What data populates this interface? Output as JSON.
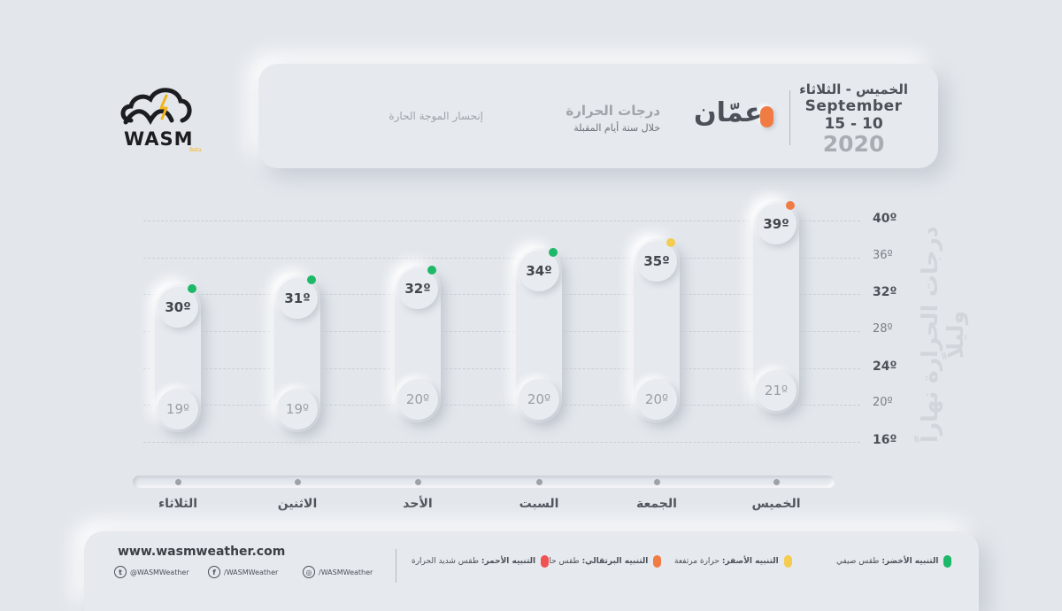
{
  "header": {
    "date_line1": "الخميس - الثلاثاء",
    "date_line2": "September",
    "date_line3": "15 - 10",
    "date_line4": "2020",
    "city": "عمّان",
    "title": "درجات الحرارة",
    "subtitle": "خلال ستة أيام المقبلة",
    "note": "إنحسار الموجة الحارة"
  },
  "logo": {
    "name": "WASM",
    "tag": "Beta"
  },
  "colors": {
    "green": "#1db868",
    "yellow": "#f5cc52",
    "orange": "#f07c44",
    "red": "#ef5354"
  },
  "chart_data": {
    "type": "bar",
    "ylabel": "درجات الحرارة نهاراً وليلاً",
    "ylim": [
      16,
      40
    ],
    "yticks": [
      "40º",
      "36º",
      "32º",
      "28º",
      "24º",
      "20º",
      "16º"
    ],
    "major_ticks": [
      "40º",
      "32º",
      "24º",
      "16º"
    ],
    "categories": [
      "الخميس",
      "الجمعة",
      "السبت",
      "الأحد",
      "الاثنين",
      "الثلاثاء"
    ],
    "highs": [
      39,
      35,
      34,
      32,
      31,
      30
    ],
    "lows": [
      21,
      20,
      20,
      20,
      19,
      19
    ],
    "high_labels": [
      "39º",
      "35º",
      "34º",
      "32º",
      "31º",
      "30º"
    ],
    "low_labels": [
      "21º",
      "20º",
      "20º",
      "20º",
      "19º",
      "19º"
    ],
    "alerts": [
      "orange",
      "yellow",
      "green",
      "green",
      "green",
      "green"
    ]
  },
  "footer": {
    "url": "www.wasmweather.com",
    "twitter": "@WASMWeather",
    "facebook": "/WASMWeather",
    "instagram": "/WASMWeather",
    "legend": [
      {
        "color": "green",
        "title": "التنبيه الأخضر:",
        "desc": "طقس صيفي"
      },
      {
        "color": "yellow",
        "title": "التنبيه الأصفر:",
        "desc": "حرارة مرتفعة"
      },
      {
        "color": "orange",
        "title": "التنبيه البرتقالي:",
        "desc": "طقس حار"
      },
      {
        "color": "red",
        "title": "التنبيه الأحمر:",
        "desc": "طقس شديد الحرارة"
      }
    ]
  }
}
